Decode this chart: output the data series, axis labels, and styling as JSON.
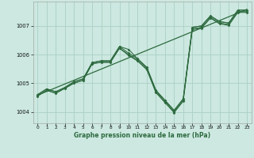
{
  "xlabel": "Graphe pression niveau de la mer (hPa)",
  "background_color": "#cce8e0",
  "grid_color": "#aad0c4",
  "line_color": "#2d6a3f",
  "xlim": [
    -0.5,
    23.5
  ],
  "ylim": [
    1003.6,
    1007.85
  ],
  "yticks": [
    1004,
    1005,
    1006,
    1007
  ],
  "xticks": [
    0,
    1,
    2,
    3,
    4,
    5,
    6,
    7,
    8,
    9,
    10,
    11,
    12,
    13,
    14,
    15,
    16,
    17,
    18,
    19,
    20,
    21,
    22,
    23
  ],
  "series1": [
    1004.6,
    1004.8,
    1004.7,
    1004.85,
    1005.05,
    1005.15,
    1005.72,
    1005.78,
    1005.78,
    1006.28,
    1006.18,
    1005.85,
    1005.55,
    1004.75,
    1004.4,
    1004.05,
    1004.45,
    1006.95,
    1007.0,
    1007.35,
    1007.15,
    1007.1,
    1007.55,
    1007.55
  ],
  "series2": [
    1004.6,
    1004.8,
    1004.7,
    1004.85,
    1005.05,
    1005.15,
    1005.72,
    1005.78,
    1005.78,
    1006.28,
    1006.05,
    1005.85,
    1005.55,
    1004.75,
    1004.4,
    1004.05,
    1004.45,
    1006.95,
    1007.0,
    1007.35,
    1007.15,
    1007.1,
    1007.55,
    1007.55
  ],
  "series3": [
    1004.55,
    1004.75,
    1004.65,
    1004.82,
    1005.0,
    1005.1,
    1005.68,
    1005.73,
    1005.73,
    1006.22,
    1006.0,
    1005.8,
    1005.5,
    1004.7,
    1004.35,
    1004.0,
    1004.4,
    1006.9,
    1006.95,
    1007.3,
    1007.1,
    1007.05,
    1007.5,
    1007.5
  ],
  "series4": [
    1004.55,
    1004.75,
    1004.65,
    1004.82,
    1005.0,
    1005.1,
    1005.68,
    1005.73,
    1005.73,
    1006.22,
    1005.97,
    1005.77,
    1005.47,
    1004.67,
    1004.32,
    1003.97,
    1004.37,
    1006.87,
    1006.92,
    1007.27,
    1007.07,
    1007.02,
    1007.47,
    1007.47
  ],
  "trend_x": [
    0,
    23
  ],
  "trend_y": [
    1004.58,
    1007.58
  ]
}
